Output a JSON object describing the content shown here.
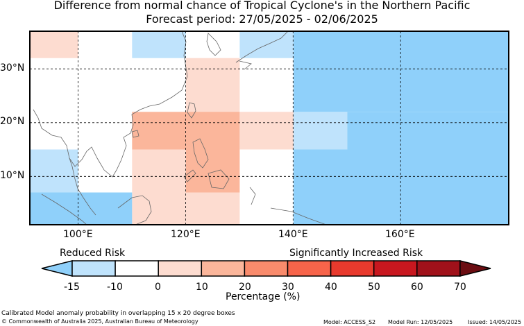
{
  "title": "Difference from normal chance of Tropical Cyclone's in the Northern Pacific",
  "subtitle": "Forecast period: 27/05/2025 - 02/06/2025",
  "lat_labels": [
    "30°N",
    "20°N",
    "10°N"
  ],
  "lon_labels": [
    "100°E",
    "120°E",
    "140°E",
    "160°E"
  ],
  "legend": {
    "reduced_label": "Reduced Risk",
    "increased_label": "Significantly Increased Risk",
    "tick_labels": [
      "-15",
      "-10",
      "0",
      "10",
      "20",
      "30",
      "40",
      "50",
      "60",
      "70"
    ],
    "unit_label": "Percentage (%)",
    "colors": [
      "#8fd0fa",
      "#bfe3fc",
      "#ffffff",
      "#fddcd0",
      "#fbb69b",
      "#f98b6c",
      "#f7644a",
      "#e83a2d",
      "#c8171f",
      "#a0111a",
      "#6b0d12"
    ]
  },
  "footer": {
    "note": "Calibrated Model anomaly probability in overlapping 15 x 20 degree boxes",
    "copyright": "© Commonwealth of Australia 2025, Australian Bureau of Meteorology",
    "model": "Model: ACCESS_S2",
    "model_run": "Model Run: 12/05/2025",
    "issued": "Issued: 14/05/2025"
  },
  "chart_data": {
    "type": "heatmap",
    "extent": {
      "lon": [
        91,
        180
      ],
      "lat": [
        1,
        37
      ]
    },
    "color_scale": {
      "bins": [
        -15,
        -10,
        0,
        10,
        20,
        30,
        40,
        50,
        60,
        70
      ],
      "colors": [
        "#8fd0fa",
        "#bfe3fc",
        "#ffffff",
        "#fddcd0",
        "#fbb69b",
        "#f98b6c",
        "#f7644a",
        "#e83a2d",
        "#c8171f",
        "#a0111a",
        "#6b0d12"
      ]
    },
    "cells": [
      {
        "lon": [
          91,
          100
        ],
        "lat": [
          32,
          37
        ],
        "value": 5
      },
      {
        "lon": [
          110,
          120
        ],
        "lat": [
          32,
          37
        ],
        "value": -12
      },
      {
        "lon": [
          130,
          140
        ],
        "lat": [
          32,
          37
        ],
        "value": -12
      },
      {
        "lon": [
          120,
          130
        ],
        "lat": [
          15,
          32
        ],
        "value": 5
      },
      {
        "lon": [
          110,
          120
        ],
        "lat": [
          15,
          22
        ],
        "value": 15
      },
      {
        "lon": [
          120,
          130
        ],
        "lat": [
          15,
          22
        ],
        "value": 15
      },
      {
        "lon": [
          130,
          140
        ],
        "lat": [
          15,
          22
        ],
        "value": 5
      },
      {
        "lon": [
          110,
          120
        ],
        "lat": [
          1,
          15
        ],
        "value": 5
      },
      {
        "lon": [
          120,
          130
        ],
        "lat": [
          7,
          15
        ],
        "value": 15
      },
      {
        "lon": [
          120,
          130
        ],
        "lat": [
          1,
          7
        ],
        "value": 5
      },
      {
        "lon": [
          91,
          100
        ],
        "lat": [
          7,
          15
        ],
        "value": -12
      },
      {
        "lon": [
          91,
          110
        ],
        "lat": [
          1,
          7
        ],
        "value": -20
      },
      {
        "lon": [
          140,
          150
        ],
        "lat": [
          15,
          22
        ],
        "value": -12
      },
      {
        "lon": [
          140,
          180
        ],
        "lat": [
          22,
          37
        ],
        "value": -20
      },
      {
        "lon": [
          150,
          180
        ],
        "lat": [
          15,
          22
        ],
        "value": -20
      },
      {
        "lon": [
          140,
          180
        ],
        "lat": [
          1,
          15
        ],
        "value": -20
      }
    ],
    "gridlines": {
      "lon": [
        100,
        120,
        140,
        160
      ],
      "lat": [
        10,
        20,
        30
      ]
    },
    "grid": true,
    "coastlines": true
  }
}
